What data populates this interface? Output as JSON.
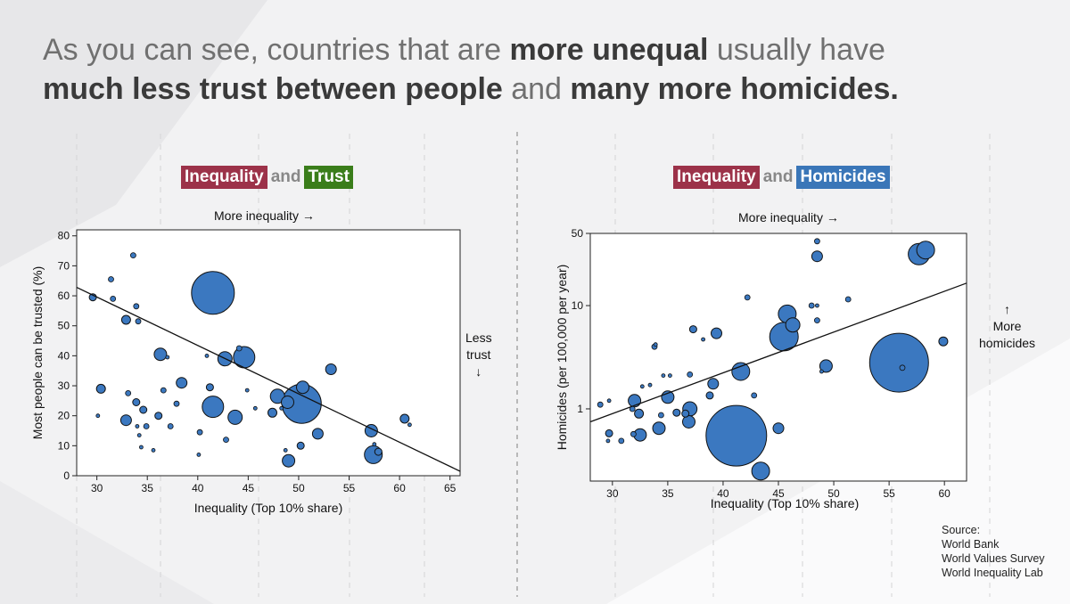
{
  "headline": {
    "p1": "As you can see, countries that are ",
    "b1": "more unequal",
    "p2": " usually have ",
    "b2": "much less trust between people",
    "p3": " and ",
    "b3": "many more homicides."
  },
  "colors": {
    "inequality": "#9c3249",
    "trust": "#3a7d1a",
    "homicides": "#3a76b8",
    "bubble_fill": "#3b78c0",
    "bubble_stroke": "#111111"
  },
  "left_panel": {
    "title_a": "Inequality",
    "title_and": "and",
    "title_b": "Trust",
    "top_note": "More inequality →",
    "side_note_1": "Less",
    "side_note_2": "trust",
    "side_note_arrow": "↓"
  },
  "right_panel": {
    "title_a": "Inequality",
    "title_and": "and",
    "title_b": "Homicides",
    "top_note": "More inequality →",
    "side_note_arrow": "↑",
    "side_note_1": "More",
    "side_note_2": "homicides"
  },
  "source": {
    "label": "Source:",
    "items": [
      "World Bank",
      "World Values Survey",
      "World Inequality Lab"
    ]
  },
  "chart_data": [
    {
      "type": "scatter",
      "xlabel": "Inequality (Top 10% share)",
      "ylabel": "Most people can be trusted (%)",
      "xlim": [
        28,
        66
      ],
      "ylim": [
        0,
        82
      ],
      "xticks": [
        30,
        35,
        40,
        45,
        50,
        55,
        60,
        65
      ],
      "yticks": [
        0,
        10,
        20,
        30,
        40,
        50,
        60,
        70,
        80
      ],
      "grid": false,
      "trendline": [
        [
          28,
          62.8
        ],
        [
          66,
          1.5
        ]
      ],
      "points": [
        {
          "x": 29.6,
          "y": 59.5,
          "s": 4
        },
        {
          "x": 31.4,
          "y": 65.5,
          "s": 3
        },
        {
          "x": 31.6,
          "y": 59,
          "s": 3
        },
        {
          "x": 33.6,
          "y": 73.5,
          "s": 3
        },
        {
          "x": 32.9,
          "y": 52,
          "s": 5
        },
        {
          "x": 33.9,
          "y": 56.5,
          "s": 3
        },
        {
          "x": 34.1,
          "y": 51.5,
          "s": 3
        },
        {
          "x": 30.1,
          "y": 20,
          "s": 2
        },
        {
          "x": 30.4,
          "y": 29,
          "s": 5
        },
        {
          "x": 32.9,
          "y": 18.5,
          "s": 6
        },
        {
          "x": 33.1,
          "y": 27.5,
          "s": 3
        },
        {
          "x": 33.9,
          "y": 24.5,
          "s": 4
        },
        {
          "x": 34.0,
          "y": 16.5,
          "s": 2
        },
        {
          "x": 34.2,
          "y": 13.5,
          "s": 2
        },
        {
          "x": 34.6,
          "y": 22,
          "s": 4
        },
        {
          "x": 34.4,
          "y": 9.5,
          "s": 2
        },
        {
          "x": 34.9,
          "y": 16.5,
          "s": 3
        },
        {
          "x": 35.6,
          "y": 8.5,
          "s": 2
        },
        {
          "x": 36.1,
          "y": 20,
          "s": 4
        },
        {
          "x": 36.3,
          "y": 40.5,
          "s": 7
        },
        {
          "x": 36.6,
          "y": 28.5,
          "s": 3
        },
        {
          "x": 37.0,
          "y": 39.5,
          "s": 2
        },
        {
          "x": 37.3,
          "y": 16.5,
          "s": 3
        },
        {
          "x": 37.9,
          "y": 24,
          "s": 3
        },
        {
          "x": 38.4,
          "y": 31,
          "s": 6
        },
        {
          "x": 40.2,
          "y": 14.5,
          "s": 3
        },
        {
          "x": 40.1,
          "y": 7,
          "s": 2
        },
        {
          "x": 40.9,
          "y": 40,
          "s": 2
        },
        {
          "x": 41.2,
          "y": 29.5,
          "s": 4
        },
        {
          "x": 41.5,
          "y": 61,
          "s": 24
        },
        {
          "x": 41.5,
          "y": 23,
          "s": 12
        },
        {
          "x": 42.7,
          "y": 39,
          "s": 8
        },
        {
          "x": 42.8,
          "y": 12,
          "s": 3
        },
        {
          "x": 43.7,
          "y": 19.5,
          "s": 8
        },
        {
          "x": 44.1,
          "y": 42.5,
          "s": 3
        },
        {
          "x": 44.6,
          "y": 39.5,
          "s": 12
        },
        {
          "x": 44.9,
          "y": 28.5,
          "s": 2
        },
        {
          "x": 45.7,
          "y": 22.5,
          "s": 2
        },
        {
          "x": 47.4,
          "y": 21,
          "s": 5
        },
        {
          "x": 47.9,
          "y": 26.5,
          "s": 8
        },
        {
          "x": 48.3,
          "y": 22.5,
          "s": 2
        },
        {
          "x": 48.7,
          "y": 8.5,
          "s": 2
        },
        {
          "x": 49.0,
          "y": 5,
          "s": 7
        },
        {
          "x": 48.9,
          "y": 24.5,
          "s": 7
        },
        {
          "x": 50.2,
          "y": 10,
          "s": 4
        },
        {
          "x": 50.4,
          "y": 29.5,
          "s": 7
        },
        {
          "x": 50.3,
          "y": 24,
          "s": 22
        },
        {
          "x": 51.9,
          "y": 14,
          "s": 6
        },
        {
          "x": 53.2,
          "y": 35.5,
          "s": 6
        },
        {
          "x": 57.2,
          "y": 15,
          "s": 7
        },
        {
          "x": 57.4,
          "y": 7,
          "s": 10
        },
        {
          "x": 57.5,
          "y": 10.5,
          "s": 2
        },
        {
          "x": 57.9,
          "y": 8,
          "s": 4
        },
        {
          "x": 60.5,
          "y": 19,
          "s": 5
        },
        {
          "x": 61.0,
          "y": 17,
          "s": 2
        }
      ]
    },
    {
      "type": "scatter",
      "xlabel": "Inequality (Top 10% share)",
      "ylabel": "Homicides (per 100,000 per year)",
      "xlim": [
        28,
        62
      ],
      "ylim": [
        0.2,
        50
      ],
      "yscale": "log",
      "xticks": [
        30,
        35,
        40,
        45,
        50,
        55,
        60
      ],
      "yticks": [
        1,
        10,
        50
      ],
      "grid": false,
      "trendline": [
        [
          28,
          0.75
        ],
        [
          62,
          16.5
        ]
      ],
      "points": [
        {
          "x": 28.9,
          "y": 1.1,
          "s": 3
        },
        {
          "x": 29.7,
          "y": 1.2,
          "s": 2
        },
        {
          "x": 29.7,
          "y": 0.58,
          "s": 4
        },
        {
          "x": 29.6,
          "y": 0.49,
          "s": 2
        },
        {
          "x": 30.8,
          "y": 0.49,
          "s": 3
        },
        {
          "x": 31.8,
          "y": 1.0,
          "s": 3
        },
        {
          "x": 32.0,
          "y": 1.2,
          "s": 7
        },
        {
          "x": 32.4,
          "y": 0.9,
          "s": 5
        },
        {
          "x": 31.9,
          "y": 0.57,
          "s": 3
        },
        {
          "x": 32.5,
          "y": 0.56,
          "s": 7
        },
        {
          "x": 32.7,
          "y": 1.65,
          "s": 2
        },
        {
          "x": 33.4,
          "y": 1.7,
          "s": 2
        },
        {
          "x": 33.8,
          "y": 4.0,
          "s": 3
        },
        {
          "x": 33.9,
          "y": 4.2,
          "s": 2
        },
        {
          "x": 34.2,
          "y": 0.65,
          "s": 7
        },
        {
          "x": 34.4,
          "y": 0.87,
          "s": 3
        },
        {
          "x": 34.6,
          "y": 2.1,
          "s": 2
        },
        {
          "x": 35.0,
          "y": 1.3,
          "s": 7
        },
        {
          "x": 35.2,
          "y": 2.1,
          "s": 2
        },
        {
          "x": 35.8,
          "y": 0.92,
          "s": 4
        },
        {
          "x": 36.6,
          "y": 0.9,
          "s": 4
        },
        {
          "x": 36.9,
          "y": 0.75,
          "s": 7
        },
        {
          "x": 37.0,
          "y": 1.0,
          "s": 8
        },
        {
          "x": 37.0,
          "y": 2.15,
          "s": 3
        },
        {
          "x": 37.3,
          "y": 5.9,
          "s": 4
        },
        {
          "x": 38.2,
          "y": 4.7,
          "s": 2
        },
        {
          "x": 38.8,
          "y": 1.35,
          "s": 4
        },
        {
          "x": 39.1,
          "y": 1.75,
          "s": 6
        },
        {
          "x": 39.4,
          "y": 5.4,
          "s": 6
        },
        {
          "x": 41.2,
          "y": 0.55,
          "s": 34
        },
        {
          "x": 41.6,
          "y": 2.3,
          "s": 10
        },
        {
          "x": 42.2,
          "y": 12.0,
          "s": 3
        },
        {
          "x": 42.8,
          "y": 1.35,
          "s": 3
        },
        {
          "x": 43.4,
          "y": 0.25,
          "s": 10
        },
        {
          "x": 45.0,
          "y": 0.65,
          "s": 6
        },
        {
          "x": 45.5,
          "y": 5.0,
          "s": 16
        },
        {
          "x": 45.8,
          "y": 8.3,
          "s": 10
        },
        {
          "x": 46.3,
          "y": 6.5,
          "s": 8
        },
        {
          "x": 48.0,
          "y": 10.0,
          "s": 3
        },
        {
          "x": 48.5,
          "y": 10.0,
          "s": 2
        },
        {
          "x": 48.5,
          "y": 7.2,
          "s": 3
        },
        {
          "x": 48.5,
          "y": 30.0,
          "s": 6
        },
        {
          "x": 48.5,
          "y": 42.0,
          "s": 3
        },
        {
          "x": 48.9,
          "y": 2.3,
          "s": 2
        },
        {
          "x": 49.3,
          "y": 2.6,
          "s": 7
        },
        {
          "x": 51.3,
          "y": 11.5,
          "s": 3
        },
        {
          "x": 55.9,
          "y": 2.8,
          "s": 33
        },
        {
          "x": 56.2,
          "y": 2.5,
          "s": 3
        },
        {
          "x": 57.7,
          "y": 31.5,
          "s": 12
        },
        {
          "x": 58.3,
          "y": 34.5,
          "s": 10
        },
        {
          "x": 59.9,
          "y": 4.5,
          "s": 5
        }
      ]
    }
  ]
}
